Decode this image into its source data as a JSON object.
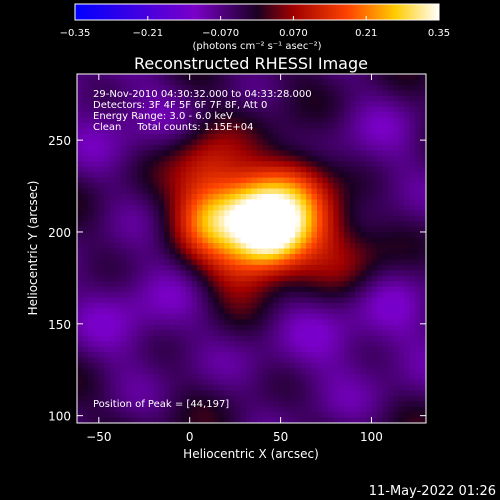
{
  "chart_data": {
    "type": "heatmap",
    "title": "Reconstructed RHESSI Image",
    "xlabel": "Heliocentric X (arcsec)",
    "ylabel": "Heliocentric Y (arcsec)",
    "xlim": [
      -62,
      130
    ],
    "ylim": [
      96,
      286
    ],
    "x_ticks": [
      -50,
      0,
      50,
      100
    ],
    "y_ticks": [
      100,
      150,
      200,
      250
    ],
    "x_tick_labels": [
      "−50",
      "0",
      "50",
      "100"
    ],
    "y_tick_labels": [
      "100",
      "150",
      "200",
      "250"
    ],
    "colorbar": {
      "range": [
        -0.35,
        0.35
      ],
      "ticks": [
        -0.35,
        -0.21,
        -0.07,
        0.07,
        0.21,
        0.35
      ],
      "tick_labels": [
        "−0.35",
        "−0.21",
        "−0.070",
        "0.070",
        "0.21",
        "0.35"
      ],
      "label": "(photons cm⁻² s⁻¹ asec⁻²)"
    },
    "annotations": [
      "29-Nov-2010 04:30:32.000 to 04:33:28.000",
      "Detectors: 3F 4F 5F 6F 7F 8F, Att 0",
      "Energy Range: 3.0 - 6.0 keV",
      "Clean     Total counts: 1.15E+04"
    ],
    "peak": {
      "x": 44,
      "y": 197,
      "label": "Position of Peak = [44,197]"
    },
    "sources": [
      {
        "x": 44,
        "y": 197,
        "value": 0.35
      },
      {
        "x": 12,
        "y": 208,
        "value": 0.22
      },
      {
        "x": 34,
        "y": 214,
        "value": 0.18
      },
      {
        "x": 58,
        "y": 226,
        "value": 0.16
      },
      {
        "x": 8,
        "y": 235,
        "value": 0.12
      },
      {
        "x": 70,
        "y": 205,
        "value": 0.14
      },
      {
        "x": 25,
        "y": 180,
        "value": 0.1
      },
      {
        "x": 90,
        "y": 185,
        "value": 0.09
      }
    ],
    "negative_regions": [
      {
        "x": -40,
        "y": 265,
        "value": -0.07
      },
      {
        "x": -30,
        "y": 155,
        "value": -0.08
      },
      {
        "x": 100,
        "y": 245,
        "value": -0.06
      },
      {
        "x": 110,
        "y": 150,
        "value": -0.07
      },
      {
        "x": 60,
        "y": 130,
        "value": -0.05
      }
    ]
  },
  "footer": {
    "timestamp": "11-May-2022 01:26"
  }
}
